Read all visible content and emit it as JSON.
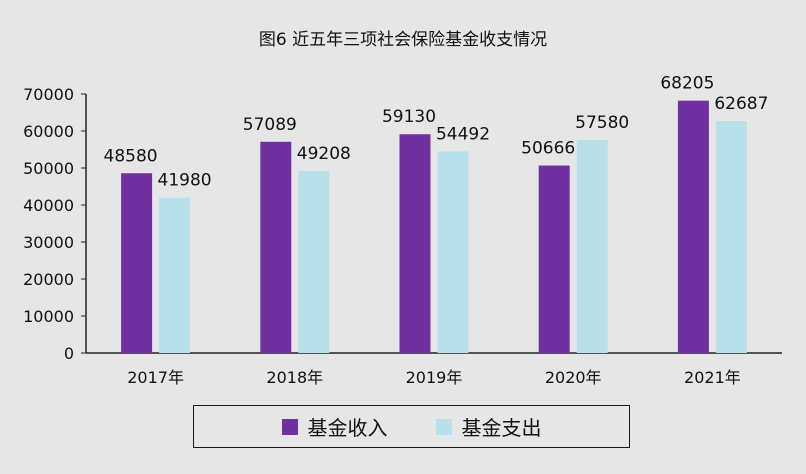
{
  "chart_data": {
    "type": "bar",
    "title": "图6  近五年三项社会保险基金收支情况",
    "categories": [
      "2017年",
      "2018年",
      "2019年",
      "2020年",
      "2021年"
    ],
    "series": [
      {
        "name": "基金收入",
        "color": "#7030a0",
        "values": [
          48580,
          57089,
          59130,
          50666,
          68205
        ]
      },
      {
        "name": "基金支出",
        "color": "#b7e0e8",
        "values": [
          41980,
          49208,
          54492,
          57580,
          62687
        ]
      }
    ],
    "ylim": [
      0,
      70000
    ],
    "yticks": [
      0,
      10000,
      20000,
      30000,
      40000,
      50000,
      60000,
      70000
    ],
    "grid": false,
    "legend_position": "bottom",
    "data_labels": true
  }
}
